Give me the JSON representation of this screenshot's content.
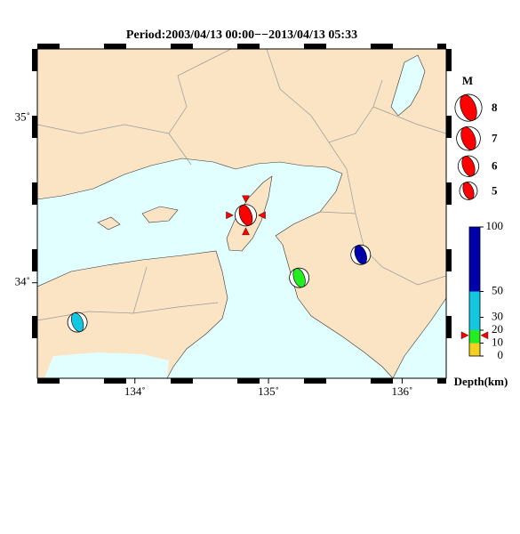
{
  "map": {
    "title": "Period:2003/04/13 00:00−−2013/04/13 05:33",
    "lonlim": [
      133.27,
      136.33
    ],
    "latlim": [
      33.42,
      35.42
    ],
    "lonticks": [
      {
        "value": 134,
        "label": "134˚"
      },
      {
        "value": 135,
        "label": "135˚"
      },
      {
        "value": 136,
        "label": "136˚"
      }
    ],
    "latticks": [
      {
        "value": 34,
        "label": "34˚"
      },
      {
        "value": 35,
        "label": "35˚"
      }
    ],
    "land_color": "#fbe4c4",
    "sea_color": "#e1ffff",
    "events": [
      {
        "lon": 134.83,
        "lat": 34.41,
        "depth": 16,
        "magnitude": 6.2,
        "highlighted": true
      },
      {
        "lon": 135.69,
        "lat": 34.17,
        "depth": 70,
        "magnitude": 5.6
      },
      {
        "lon": 135.23,
        "lat": 34.03,
        "depth": 15,
        "magnitude": 5.6
      },
      {
        "lon": 133.57,
        "lat": 33.76,
        "depth": 35,
        "magnitude": 5.6
      }
    ],
    "highlight_color": "#ff0000",
    "magnitude_legend": {
      "title": "M",
      "magnitudes": [
        8,
        7,
        6,
        5
      ]
    },
    "depth_scale": {
      "label": "Depth(km)",
      "range": [
        0,
        100
      ],
      "ticks": [
        100,
        50,
        30,
        20,
        10,
        0
      ],
      "bands": [
        {
          "from": 0,
          "to": 10,
          "color": "#f2d21e"
        },
        {
          "from": 10,
          "to": 20,
          "color": "#22ee22"
        },
        {
          "from": 20,
          "to": 50,
          "color": "#11c8e0"
        },
        {
          "from": 50,
          "to": 100,
          "color": "#0000aa"
        }
      ]
    }
  }
}
